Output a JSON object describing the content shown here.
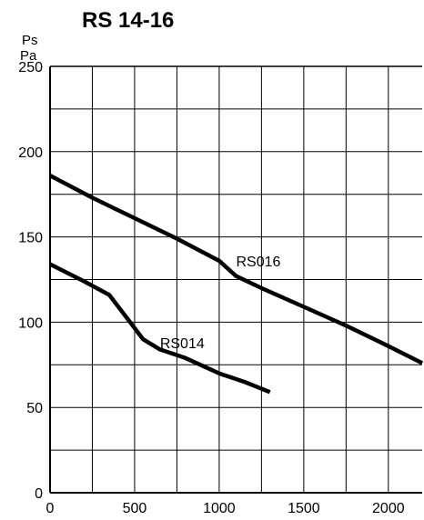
{
  "chart_data": {
    "type": "line",
    "title": "RS 14-16",
    "ylabel_lines": [
      "Ps",
      "Pa"
    ],
    "xlabel": "",
    "xlim": [
      0,
      2200
    ],
    "ylim": [
      0,
      250
    ],
    "xticks": [
      0,
      500,
      1000,
      1500,
      2000
    ],
    "yticks": [
      0,
      50,
      100,
      150,
      200,
      250
    ],
    "x_grid_step": 250,
    "y_grid_step": 25,
    "grid": true,
    "series": [
      {
        "name": "RS016",
        "x": [
          0,
          250,
          500,
          750,
          1000,
          1100,
          1250,
          1500,
          1750,
          2000,
          2200
        ],
        "y": [
          186,
          173,
          161,
          149,
          136,
          127,
          120,
          109,
          98,
          86,
          76
        ]
      },
      {
        "name": "RS014",
        "x": [
          0,
          200,
          350,
          450,
          550,
          650,
          800,
          1000,
          1150,
          1300
        ],
        "y": [
          134,
          124,
          116,
          103,
          90,
          84,
          79,
          70,
          65,
          59
        ]
      }
    ]
  }
}
